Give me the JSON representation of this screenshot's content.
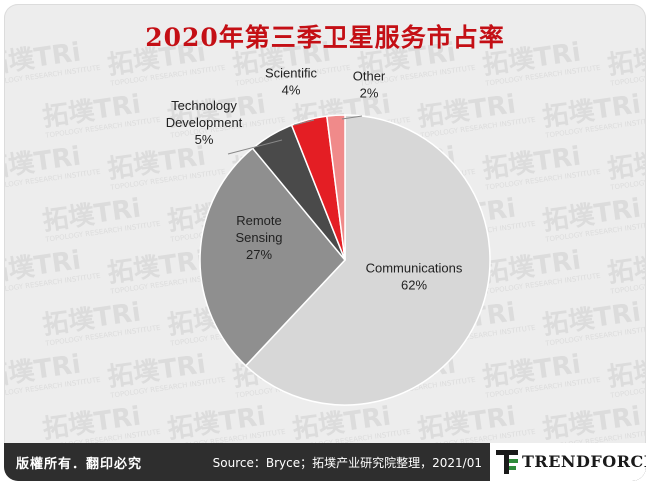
{
  "title": "2020年第三季卫星服务市占率",
  "chart_data": {
    "type": "pie",
    "title": "2020年第三季卫星服务市占率",
    "slices": [
      {
        "label": "Communications",
        "value": 62,
        "value_label": "62%",
        "color": "#d7d7d7"
      },
      {
        "label": "Remote Sensing",
        "value": 27,
        "value_label": "27%",
        "color": "#8f8f8f"
      },
      {
        "label": "Technology Development",
        "value": 5,
        "value_label": "5%",
        "color": "#4a4a4a"
      },
      {
        "label": "Scientific",
        "value": 4,
        "value_label": "4%",
        "color": "#e41e24"
      },
      {
        "label": "Other",
        "value": 2,
        "value_label": "2%",
        "color": "#f08a8a"
      }
    ],
    "legend": "none"
  },
  "footer": {
    "copyright": "版權所有．翻印必究",
    "source": "Source：Bryce；拓墣产业研究院整理，2021/01",
    "brand": "TRENDFORCE"
  },
  "watermark": {
    "text": "拓墣TRi",
    "sub_text": "TOPOLOGY RESEARCH INSTITUTE"
  }
}
